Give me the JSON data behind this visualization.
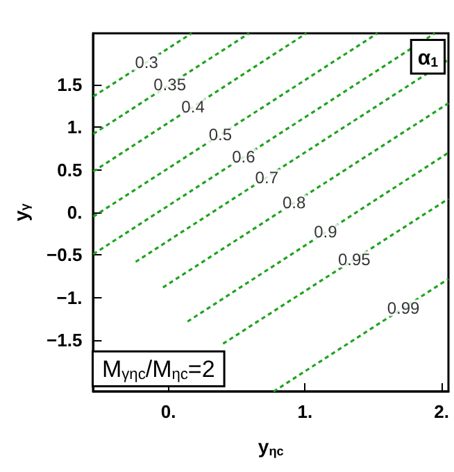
{
  "chart_data": {
    "type": "line",
    "xlabel": "y$_{ηc}$",
    "ylabel": "y$_{γ}$",
    "xlim": [
      -0.55,
      2.05
    ],
    "ylim": [
      -2.1,
      2.1
    ],
    "xticks": [
      {
        "value": 0,
        "label": "0."
      },
      {
        "value": 1,
        "label": "1."
      },
      {
        "value": 2,
        "label": "2."
      }
    ],
    "yticks": [
      {
        "value": -1.5,
        "label": "−1.5"
      },
      {
        "value": -1,
        "label": "−1."
      },
      {
        "value": -0.5,
        "label": "−0.5"
      },
      {
        "value": 0,
        "label": "0."
      },
      {
        "value": 0.5,
        "label": "0.5"
      },
      {
        "value": 1,
        "label": "1."
      },
      {
        "value": 1.5,
        "label": "1.5"
      }
    ],
    "grid": false,
    "marker": "none",
    "line_style": "dashed",
    "series": [
      {
        "color": "#1fa31f",
        "x": [
          -0.55,
          0.17
        ],
        "values": [
          1.36,
          2.1
        ]
      },
      {
        "color": "#1fa31f",
        "x": [
          -0.55,
          0.59
        ],
        "values": [
          0.92,
          2.1
        ]
      },
      {
        "color": "#1fa31f",
        "x": [
          -0.55,
          1.01
        ],
        "values": [
          0.48,
          2.1
        ]
      },
      {
        "color": "#1fa31f",
        "x": [
          -0.55,
          1.53
        ],
        "values": [
          -0.05,
          2.1
        ]
      },
      {
        "color": "#1fa31f",
        "x": [
          -0.55,
          1.95
        ],
        "values": [
          -0.49,
          2.1
        ]
      },
      {
        "color": "#1fa31f",
        "x": [
          -0.24,
          2.05
        ],
        "values": [
          -0.58,
          1.79
        ]
      },
      {
        "color": "#1fa31f",
        "x": [
          -0.04,
          2.05
        ],
        "values": [
          -0.88,
          1.28
        ]
      },
      {
        "color": "#1fa31f",
        "x": [
          0.14,
          2.05
        ],
        "values": [
          -1.28,
          0.7
        ]
      },
      {
        "color": "#1fa31f",
        "x": [
          0.4,
          2.05
        ],
        "values": [
          -1.54,
          0.16
        ]
      },
      {
        "color": "#1fa31f",
        "x": [
          0.77,
          2.05
        ],
        "values": [
          -2.1,
          -0.78
        ]
      }
    ],
    "annotations": [
      {
        "text": "0.3",
        "x": -0.16,
        "y": 1.76
      },
      {
        "text": "0.35",
        "x": 0.01,
        "y": 1.5
      },
      {
        "text": "0.4",
        "x": 0.18,
        "y": 1.24
      },
      {
        "text": "0.5",
        "x": 0.38,
        "y": 0.91
      },
      {
        "text": "0.6",
        "x": 0.55,
        "y": 0.65
      },
      {
        "text": "0.7",
        "x": 0.72,
        "y": 0.41
      },
      {
        "text": "0.8",
        "x": 0.92,
        "y": 0.11
      },
      {
        "text": "0.9",
        "x": 1.15,
        "y": -0.23
      },
      {
        "text": "0.95",
        "x": 1.36,
        "y": -0.55
      },
      {
        "text": "0.99",
        "x": 1.72,
        "y": -1.12
      },
      "α$_{1}$",
      "M$_{γηc}$/M$_{ηc}$=2"
    ]
  }
}
